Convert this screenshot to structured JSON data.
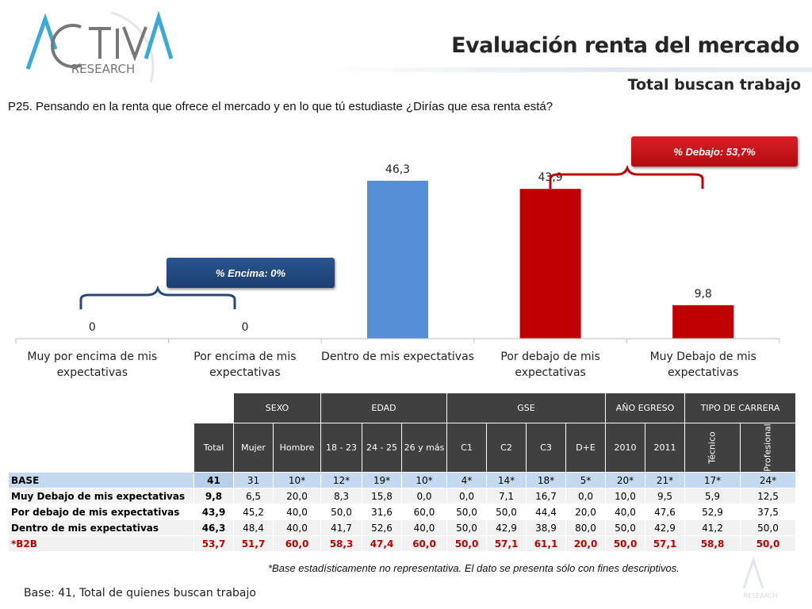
{
  "header": {
    "title": "Evaluación renta del mercado",
    "subtitle": "Total buscan trabajo",
    "question": "P25. Pensando en la renta que ofrece el mercado y en lo que tú estudiaste ¿Dirías que esa renta está?"
  },
  "logo": {
    "text_main": "ACTIVA",
    "text_sub": "RESEARCH"
  },
  "annotations": {
    "below_label": "% Debajo:  53,7%",
    "above_label": "% Encima:  0%"
  },
  "colors": {
    "blue_bar": "#558ed5",
    "red_bar": "#c00000",
    "badge_red": "#c8151b",
    "badge_blue": "#23497e",
    "table_header": "#404040",
    "base_row": "#c5d9f1",
    "b2b_text": "#c00000"
  },
  "chart_data": {
    "type": "bar",
    "categories": [
      [
        "Muy por encima de mis",
        "expectativas"
      ],
      [
        "Por encima de mis",
        "expectativas"
      ],
      [
        "Dentro de mis expectativas"
      ],
      [
        "Por debajo de mis",
        "expectativas"
      ],
      [
        "Muy Debajo de mis",
        "expectativas"
      ]
    ],
    "values": [
      0,
      0,
      46.3,
      43.9,
      9.8
    ],
    "labels": [
      "0",
      "0",
      "46,3",
      "43,9",
      "9,8"
    ],
    "bar_colors": [
      "#558ed5",
      "#558ed5",
      "#558ed5",
      "#c00000",
      "#c00000"
    ],
    "ylim": [
      0,
      50
    ],
    "grid": false
  },
  "table": {
    "groups": [
      {
        "label": "SEXO",
        "span": 2
      },
      {
        "label": "EDAD",
        "span": 3
      },
      {
        "label": "GSE",
        "span": 4
      },
      {
        "label": "AÑO EGRESO",
        "span": 2
      },
      {
        "label": "TIPO DE CARRERA",
        "span": 2
      }
    ],
    "columns": [
      "Total",
      "Mujer",
      "Hombre",
      "18 - 23",
      "24 - 25",
      "26 y más",
      "C1",
      "C2",
      "C3",
      "D+E",
      "2010",
      "2011",
      "Técnico",
      "Profesional"
    ],
    "rows": [
      {
        "label": "BASE",
        "style": "base",
        "values": [
          "41",
          "31",
          "10*",
          "12*",
          "19*",
          "10*",
          "4*",
          "14*",
          "18*",
          "5*",
          "20*",
          "21*",
          "17*",
          "24*"
        ]
      },
      {
        "label": "Muy Debajo de mis expectativas",
        "style": "g",
        "values": [
          "9,8",
          "6,5",
          "20,0",
          "8,3",
          "15,8",
          "0,0",
          "0,0",
          "7,1",
          "16,7",
          "0,0",
          "10,0",
          "9,5",
          "5,9",
          "12,5"
        ]
      },
      {
        "label": "Por debajo de mis expectativas",
        "style": "w",
        "values": [
          "43,9",
          "45,2",
          "40,0",
          "50,0",
          "31,6",
          "60,0",
          "50,0",
          "50,0",
          "44,4",
          "20,0",
          "40,0",
          "47,6",
          "52,9",
          "37,5"
        ]
      },
      {
        "label": "Dentro de mis expectativas",
        "style": "g",
        "values": [
          "46,3",
          "48,4",
          "40,0",
          "41,7",
          "52,6",
          "40,0",
          "50,0",
          "42,9",
          "38,9",
          "80,0",
          "50,0",
          "42,9",
          "41,2",
          "50,0"
        ]
      },
      {
        "label": "*B2B",
        "style": "b2b",
        "values": [
          "53,7",
          "51,7",
          "60,0",
          "58,3",
          "47,4",
          "60,0",
          "50,0",
          "57,1",
          "61,1",
          "20,0",
          "50,0",
          "57,1",
          "58,8",
          "50,0"
        ]
      }
    ]
  },
  "footnote": "*Base estadísticamente no representativa. El dato se presenta sólo con fines descriptivos.",
  "base_note": "Base: 41, Total de quienes buscan trabajo",
  "watermark": "RESEARCH"
}
